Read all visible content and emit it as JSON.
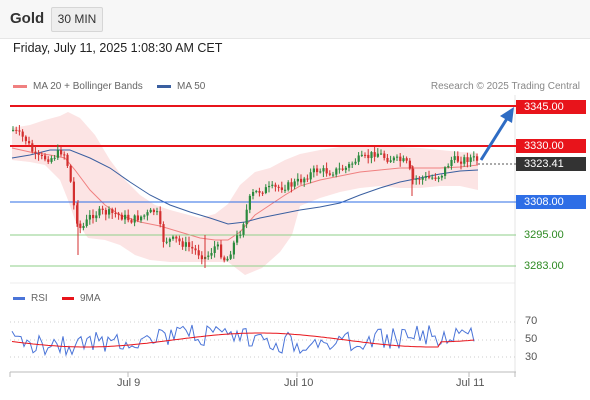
{
  "header": {
    "title": "Gold",
    "timeframe": "30 MIN"
  },
  "datetime": "Friday, July 11, 2025 1:08:30 AM CET",
  "legend": {
    "ma20_label": "MA 20 + Bollinger Bands",
    "ma50_label": "MA 50",
    "ma20_color": "#f08080",
    "ma50_color": "#3a5fa0"
  },
  "credit": "Research © 2025 Trading Central",
  "levels": [
    {
      "value": "3345.00",
      "kind": "resistance",
      "color": "#e8141b"
    },
    {
      "value": "3330.00",
      "kind": "resistance",
      "color": "#e8141b"
    },
    {
      "value": "3323.41",
      "kind": "last-price",
      "color": "#333333"
    },
    {
      "value": "3308.00",
      "kind": "pivot",
      "color": "#2e6ee6"
    },
    {
      "value": "3295.00",
      "kind": "support",
      "color": "#2d8a22"
    },
    {
      "value": "3283.00",
      "kind": "support",
      "color": "#2d8a22"
    }
  ],
  "rsi_legend": {
    "rsi_label": "RSI",
    "ma_label": "9MA",
    "rsi_color": "#4a74d8",
    "ma_color": "#e8141b"
  },
  "rsi_axis": [
    "70",
    "50",
    "30"
  ],
  "x_axis": [
    "Jul 9",
    "Jul 10",
    "Jul 11"
  ],
  "chart_data": {
    "type": "candlestick",
    "ylim": [
      3276,
      3350
    ],
    "price_levels": [
      3345,
      3330,
      3323.41,
      3308,
      3295,
      3283
    ],
    "last_price": 3323.41,
    "projection": "up-arrow",
    "rsi_levels": [
      70,
      50,
      30
    ]
  }
}
